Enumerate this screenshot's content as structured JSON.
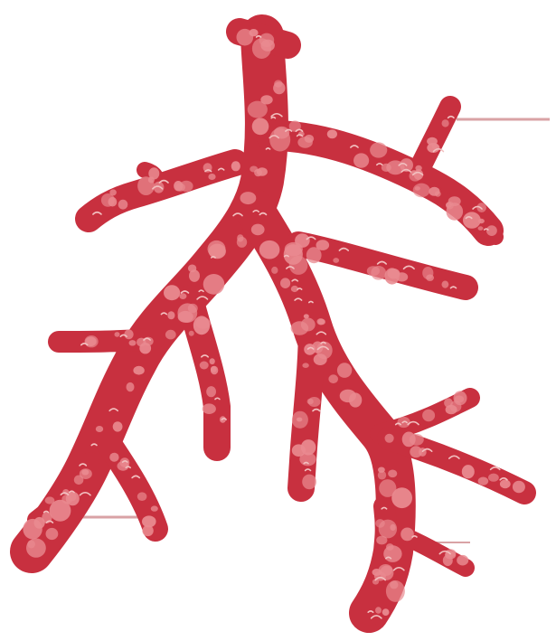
{
  "illustration": {
    "subject": "coral",
    "colors": {
      "background": "#ffffff",
      "coral": "#c8303f",
      "spots": "#e98a90",
      "speckle": "#f2c0c0",
      "haze": "#d9a2a5"
    }
  }
}
